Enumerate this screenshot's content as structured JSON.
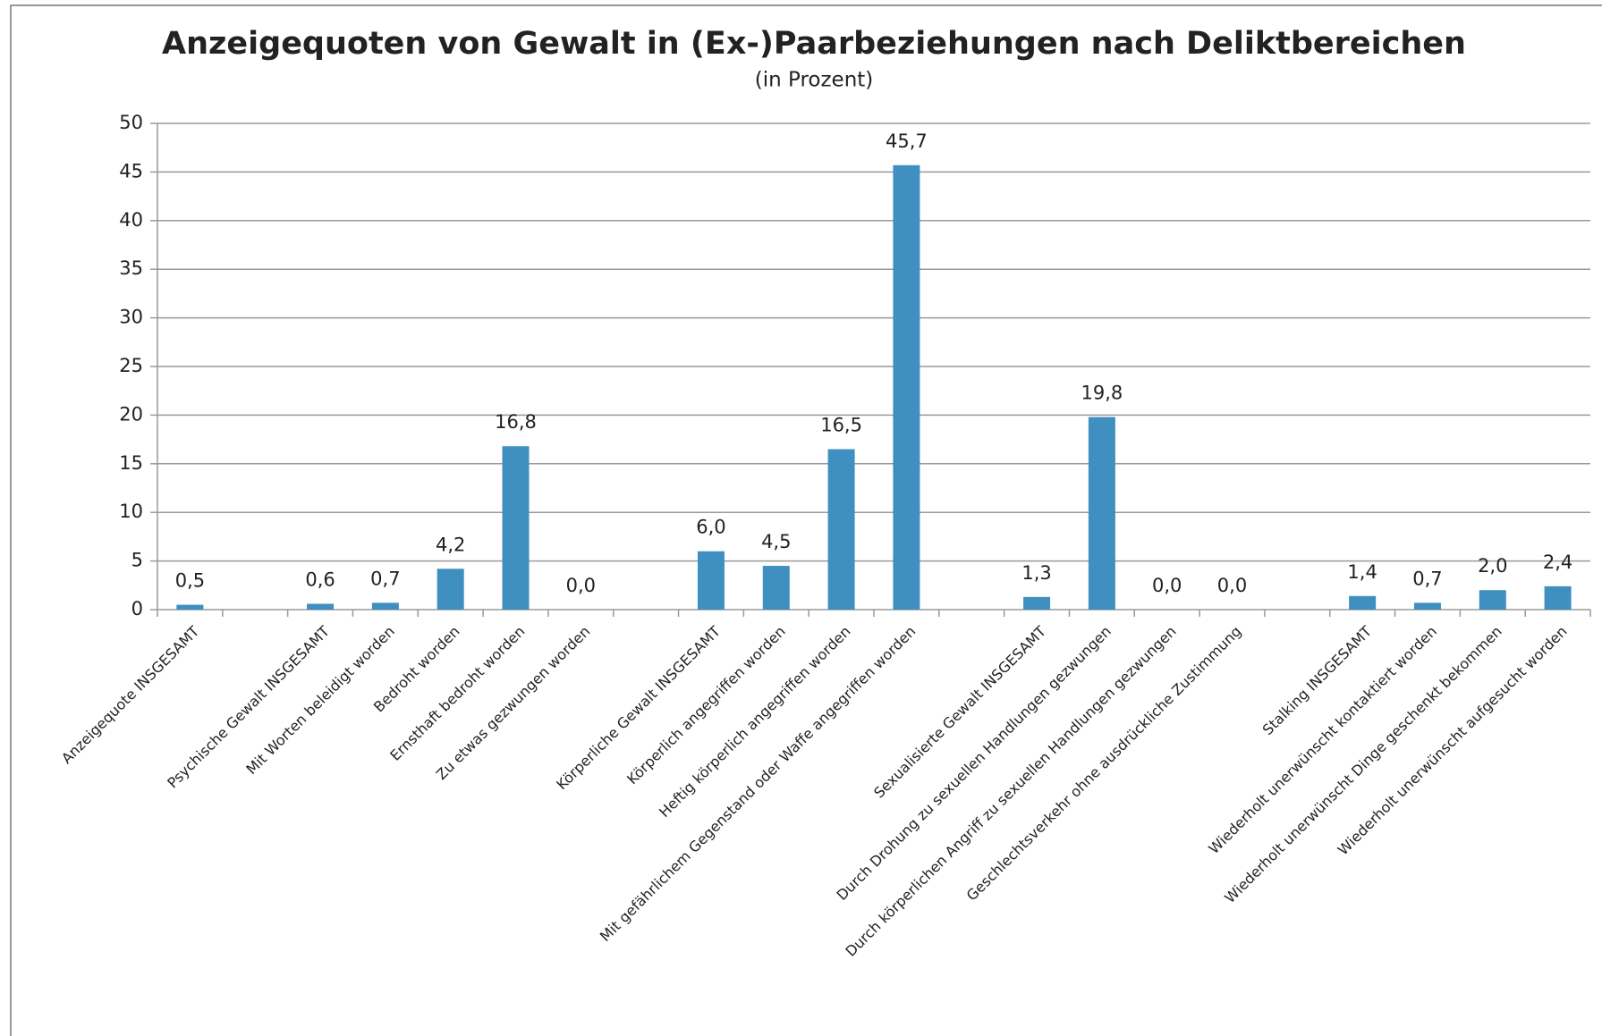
{
  "chart_data": {
    "type": "bar",
    "title": "Anzeigequoten von Gewalt in (Ex-)Paarbeziehungen nach Deliktbereichen",
    "subtitle": "(in Prozent)",
    "categories": [
      "Anzeigequote INSGESAMT",
      null,
      "Psychische Gewalt INSGESAMT",
      "Mit Worten beleidigt worden",
      "Bedroht worden",
      "Ernsthaft bedroht worden",
      "Zu etwas gezwungen worden",
      null,
      "Körperliche Gewalt INSGESAMT",
      "Körperlich angegriffen worden",
      "Heftig körperlich angegriffen worden",
      "Mit gefährlichem Gegenstand oder Waffe angegriffen worden",
      null,
      "Sexualisierte Gewalt INSGESAMT",
      "Durch Drohung zu sexuellen Handlungen gezwungen",
      "Durch körperlichen Angriff zu sexuellen Handlungen gezwungen",
      "Geschlechtsverkehr ohne ausdrückliche Zustimmung",
      null,
      "Stalking INSGESAMT",
      "Wiederholt unerwünscht kontaktiert worden",
      "Wiederholt unerwünscht Dinge geschenkt bekommen",
      "Wiederholt unerwünscht aufgesucht worden"
    ],
    "values": [
      0.5,
      null,
      0.6,
      0.7,
      4.2,
      16.8,
      0.0,
      null,
      6.0,
      4.5,
      16.5,
      45.7,
      null,
      1.3,
      19.8,
      0.0,
      0.0,
      null,
      1.4,
      0.7,
      2.0,
      2.4
    ],
    "value_labels": [
      "0,5",
      null,
      "0,6",
      "0,7",
      "4,2",
      "16,8",
      "0,0",
      null,
      "6,0",
      "4,5",
      "16,5",
      "45,7",
      null,
      "1,3",
      "19,8",
      "0,0",
      "0,0",
      null,
      "1,4",
      "0,7",
      "2,0",
      "2,4"
    ],
    "color": "#3f8fc0",
    "ylim": [
      0,
      50
    ],
    "yticks": [
      0,
      5,
      10,
      15,
      20,
      25,
      30,
      35,
      40,
      45,
      50
    ],
    "grid": true
  }
}
